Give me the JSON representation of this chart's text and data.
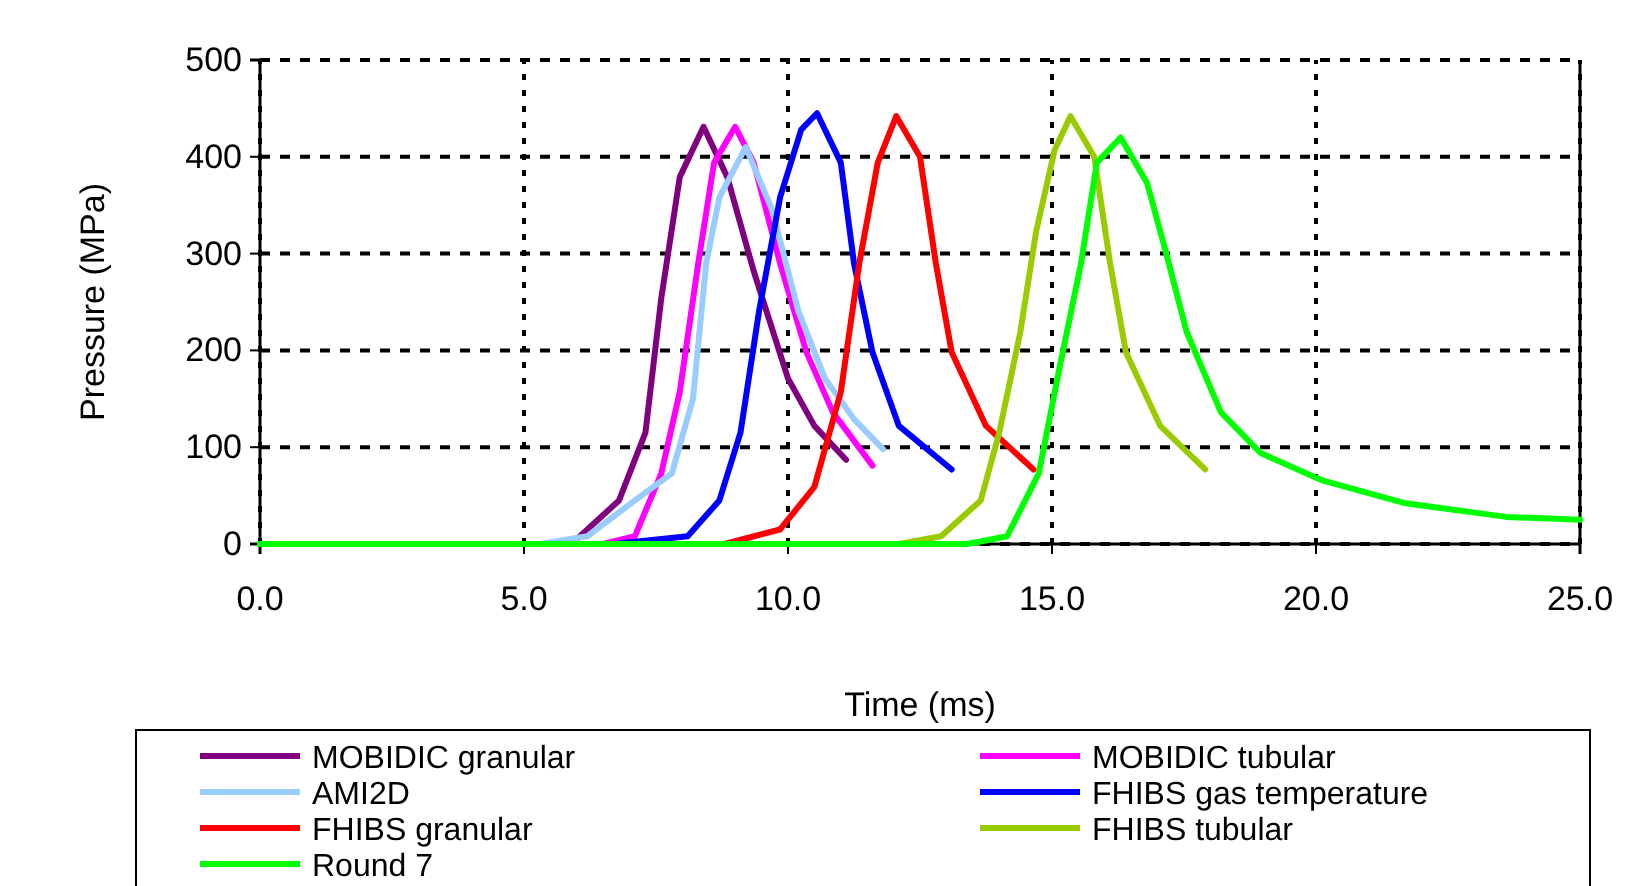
{
  "chart_data": {
    "type": "line",
    "xlabel": "Time (ms)",
    "ylabel": "Pressure (MPa)",
    "xlim": [
      0,
      25
    ],
    "ylim": [
      0,
      500
    ],
    "xticks": [
      {
        "value": 0,
        "label": "0.0"
      },
      {
        "value": 5,
        "label": "5.0"
      },
      {
        "value": 10,
        "label": "10.0"
      },
      {
        "value": 15,
        "label": "15.0"
      },
      {
        "value": 20,
        "label": "20.0"
      },
      {
        "value": 25,
        "label": "25.0"
      }
    ],
    "yticks": [
      0,
      100,
      200,
      300,
      400,
      500
    ],
    "grid": true,
    "legend": "bottom",
    "marker": "none",
    "line_style": "solid",
    "series": [
      {
        "name": "MOBIDIC granular",
        "color": "#800080",
        "x": [
          5.9,
          6.8,
          7.3,
          7.6,
          7.95,
          8.4,
          8.85,
          9.35,
          10.0,
          10.5,
          11.1
        ],
        "values": [
          0,
          45,
          115,
          254,
          379,
          431,
          379,
          282,
          171,
          122,
          87
        ]
      },
      {
        "name": "MOBIDIC tubular",
        "color": "#ff00ff",
        "x": [
          6.5,
          7.1,
          7.6,
          7.95,
          8.3,
          8.6,
          9.0,
          9.35,
          9.85,
          10.35,
          10.85,
          11.6
        ],
        "values": [
          0,
          8,
          73,
          157,
          290,
          394,
          431,
          394,
          290,
          198,
          136,
          81
        ]
      },
      {
        "name": "AMI2D",
        "color": "#99ccff",
        "x": [
          5.3,
          6.2,
          7.1,
          7.8,
          8.2,
          8.45,
          8.7,
          9.2,
          9.7,
          10.2,
          10.7,
          11.25,
          11.8
        ],
        "values": [
          0,
          8,
          45,
          73,
          150,
          290,
          358,
          410,
          345,
          240,
          171,
          129,
          98
        ]
      },
      {
        "name": "FHIBS gas temperature",
        "color": "#0000ff",
        "x": [
          6.7,
          8.1,
          8.7,
          9.1,
          9.45,
          9.85,
          10.25,
          10.55,
          11.0,
          11.25,
          11.6,
          12.1,
          13.1
        ],
        "values": [
          0,
          8,
          45,
          115,
          240,
          358,
          428,
          445,
          394,
          290,
          198,
          122,
          77
        ]
      },
      {
        "name": "FHIBS granular",
        "color": "#ff0000",
        "x": [
          8.8,
          9.85,
          10.5,
          11.0,
          11.35,
          11.7,
          12.05,
          12.5,
          12.8,
          13.1,
          13.75,
          14.65
        ],
        "values": [
          0,
          15,
          59,
          157,
          290,
          394,
          442,
          400,
          290,
          198,
          122,
          77
        ]
      },
      {
        "name": "FHIBS tubular",
        "color": "#99cc00",
        "x": [
          12.1,
          12.9,
          13.65,
          14.0,
          14.4,
          14.7,
          15.05,
          15.35,
          15.8,
          16.1,
          16.4,
          17.05,
          17.9
        ],
        "values": [
          0,
          8,
          45,
          115,
          219,
          323,
          407,
          442,
          400,
          290,
          198,
          122,
          77
        ]
      },
      {
        "name": "Round 7",
        "color": "#00ff00",
        "x": [
          0,
          13.4,
          14.15,
          14.75,
          15.15,
          15.55,
          15.85,
          16.3,
          16.8,
          17.15,
          17.55,
          18.2,
          18.95,
          20.1,
          21.7,
          23.6,
          25.0
        ],
        "values": [
          0,
          0,
          8,
          73,
          184,
          290,
          394,
          420,
          373,
          303,
          219,
          136,
          94,
          66,
          42,
          28,
          25
        ]
      }
    ]
  }
}
